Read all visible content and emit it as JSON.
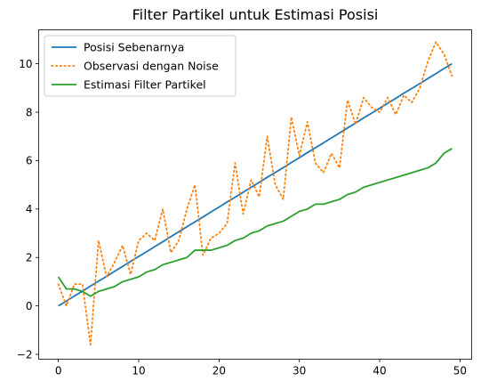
{
  "chart_data": {
    "type": "line",
    "title": "Filter Partikel untuk Estimasi Posisi",
    "xlabel": "",
    "ylabel": "",
    "xlim": [
      -2.45,
      51.45
    ],
    "ylim": [
      -2.2,
      11.4
    ],
    "x_ticks": [
      0,
      10,
      20,
      30,
      40,
      50
    ],
    "y_ticks": [
      -2,
      0,
      2,
      4,
      6,
      8,
      10
    ],
    "grid": false,
    "legend_position": "upper-left",
    "x": [
      0,
      1,
      2,
      3,
      4,
      5,
      6,
      7,
      8,
      9,
      10,
      11,
      12,
      13,
      14,
      15,
      16,
      17,
      18,
      19,
      20,
      21,
      22,
      23,
      24,
      25,
      26,
      27,
      28,
      29,
      30,
      31,
      32,
      33,
      34,
      35,
      36,
      37,
      38,
      39,
      40,
      41,
      42,
      43,
      44,
      45,
      46,
      47,
      48,
      49
    ],
    "series": [
      {
        "name": "Posisi Sebenarnya",
        "color": "#1f77b4",
        "style": "solid",
        "values": [
          0.0,
          0.2,
          0.41,
          0.61,
          0.82,
          1.02,
          1.22,
          1.43,
          1.63,
          1.84,
          2.04,
          2.24,
          2.45,
          2.65,
          2.86,
          3.06,
          3.27,
          3.47,
          3.67,
          3.88,
          4.08,
          4.29,
          4.49,
          4.69,
          4.9,
          5.1,
          5.31,
          5.51,
          5.71,
          5.92,
          6.12,
          6.33,
          6.53,
          6.73,
          6.94,
          7.14,
          7.35,
          7.55,
          7.76,
          7.96,
          8.16,
          8.37,
          8.57,
          8.78,
          8.98,
          9.18,
          9.39,
          9.59,
          9.8,
          10.0
        ]
      },
      {
        "name": "Observasi dengan Noise",
        "color": "#ff7f0e",
        "style": "dotted",
        "values": [
          0.9,
          0.0,
          0.9,
          0.9,
          -1.6,
          2.7,
          1.2,
          1.8,
          2.5,
          1.3,
          2.7,
          3.0,
          2.7,
          4.0,
          2.2,
          2.7,
          4.0,
          5.0,
          2.1,
          2.8,
          3.0,
          3.4,
          5.9,
          3.8,
          5.2,
          4.5,
          7.0,
          5.0,
          4.4,
          7.8,
          6.2,
          7.6,
          5.9,
          5.5,
          6.3,
          5.7,
          8.5,
          7.5,
          8.6,
          8.2,
          8.0,
          8.6,
          7.9,
          8.7,
          8.4,
          9.0,
          10.1,
          10.9,
          10.4,
          9.5
        ]
      },
      {
        "name": "Estimasi Filter Partikel",
        "color": "#2ca02c",
        "style": "solid",
        "values": [
          1.2,
          0.7,
          0.7,
          0.6,
          0.4,
          0.6,
          0.7,
          0.8,
          1.0,
          1.1,
          1.2,
          1.4,
          1.5,
          1.7,
          1.8,
          1.9,
          2.0,
          2.3,
          2.3,
          2.3,
          2.4,
          2.5,
          2.7,
          2.8,
          3.0,
          3.1,
          3.3,
          3.4,
          3.5,
          3.7,
          3.9,
          4.0,
          4.2,
          4.2,
          4.3,
          4.4,
          4.6,
          4.7,
          4.9,
          5.0,
          5.1,
          5.2,
          5.3,
          5.4,
          5.5,
          5.6,
          5.7,
          5.9,
          6.3,
          6.5
        ]
      }
    ]
  }
}
